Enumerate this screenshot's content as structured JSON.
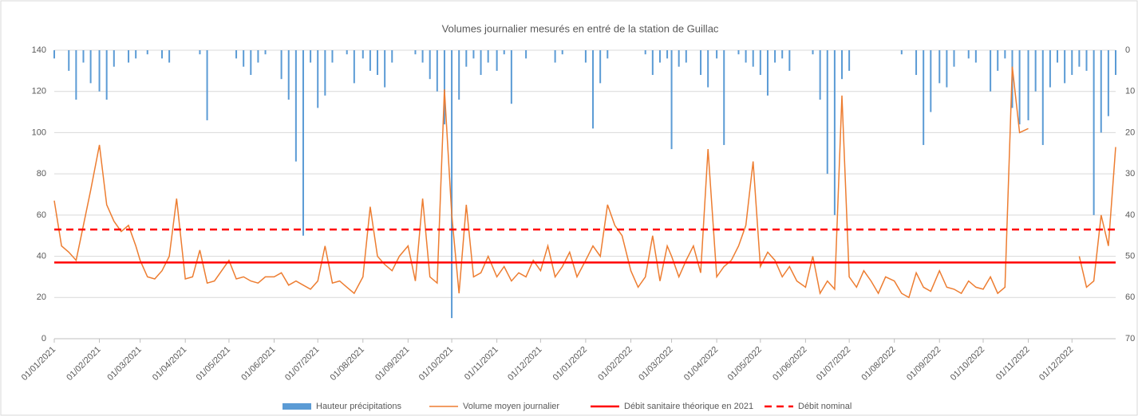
{
  "chart_data": {
    "type": "line",
    "title": "Volumes journalier mesurés en entré de la station de Guillac",
    "x": [
      "01/01/2021",
      "06/01/2021",
      "11/01/2021",
      "16/01/2021",
      "21/01/2021",
      "26/01/2021",
      "01/02/2021",
      "06/02/2021",
      "11/02/2021",
      "16/02/2021",
      "21/02/2021",
      "26/02/2021",
      "01/03/2021",
      "06/03/2021",
      "11/03/2021",
      "16/03/2021",
      "21/03/2021",
      "26/03/2021",
      "01/04/2021",
      "06/04/2021",
      "11/04/2021",
      "16/04/2021",
      "21/04/2021",
      "26/04/2021",
      "01/05/2021",
      "06/05/2021",
      "11/05/2021",
      "16/05/2021",
      "21/05/2021",
      "26/05/2021",
      "01/06/2021",
      "06/06/2021",
      "11/06/2021",
      "16/06/2021",
      "21/06/2021",
      "26/06/2021",
      "01/07/2021",
      "06/07/2021",
      "11/07/2021",
      "16/07/2021",
      "21/07/2021",
      "26/07/2021",
      "01/08/2021",
      "06/08/2021",
      "11/08/2021",
      "16/08/2021",
      "21/08/2021",
      "26/08/2021",
      "01/09/2021",
      "06/09/2021",
      "11/09/2021",
      "16/09/2021",
      "21/09/2021",
      "26/09/2021",
      "01/10/2021",
      "06/10/2021",
      "11/10/2021",
      "16/10/2021",
      "21/10/2021",
      "26/10/2021",
      "01/11/2021",
      "06/11/2021",
      "11/11/2021",
      "16/11/2021",
      "21/11/2021",
      "26/11/2021",
      "01/12/2021",
      "06/12/2021",
      "11/12/2021",
      "16/12/2021",
      "21/12/2021",
      "26/12/2021",
      "01/01/2022",
      "06/01/2022",
      "11/01/2022",
      "16/01/2022",
      "21/01/2022",
      "26/01/2022",
      "01/02/2022",
      "06/02/2022",
      "11/02/2022",
      "16/02/2022",
      "21/02/2022",
      "26/02/2022",
      "01/03/2022",
      "06/03/2022",
      "11/03/2022",
      "16/03/2022",
      "21/03/2022",
      "26/03/2022",
      "01/04/2022",
      "06/04/2022",
      "11/04/2022",
      "16/04/2022",
      "21/04/2022",
      "26/04/2022",
      "01/05/2022",
      "06/05/2022",
      "11/05/2022",
      "16/05/2022",
      "21/05/2022",
      "26/05/2022",
      "01/06/2022",
      "06/06/2022",
      "11/06/2022",
      "16/06/2022",
      "21/06/2022",
      "26/06/2022",
      "01/07/2022",
      "06/07/2022",
      "11/07/2022",
      "16/07/2022",
      "21/07/2022",
      "26/07/2022",
      "01/08/2022",
      "06/08/2022",
      "11/08/2022",
      "16/08/2022",
      "21/08/2022",
      "26/08/2022",
      "01/09/2022",
      "06/09/2022",
      "11/09/2022",
      "16/09/2022",
      "21/09/2022",
      "26/09/2022",
      "01/10/2022",
      "06/10/2022",
      "11/10/2022",
      "16/10/2022",
      "21/10/2022",
      "26/10/2022",
      "01/11/2022",
      "06/11/2022",
      "11/11/2022",
      "16/11/2022",
      "21/11/2022",
      "26/11/2022",
      "01/12/2022",
      "06/12/2022",
      "11/12/2022",
      "16/12/2022",
      "21/12/2022",
      "26/12/2022",
      "31/12/2022"
    ],
    "series": [
      {
        "name": "Hauteur précipitations",
        "type": "bar",
        "axis": "y2",
        "color": "#5b9bd5",
        "values": [
          2,
          0,
          5,
          12,
          3,
          8,
          10,
          12,
          4,
          0,
          3,
          2,
          0,
          1,
          0,
          2,
          3,
          0,
          0,
          0,
          1,
          17,
          0,
          0,
          0,
          2,
          4,
          6,
          3,
          1,
          0,
          7,
          12,
          27,
          45,
          3,
          14,
          11,
          3,
          0,
          1,
          8,
          2,
          5,
          6,
          9,
          3,
          0,
          0,
          1,
          3,
          7,
          10,
          18,
          65,
          12,
          4,
          2,
          6,
          3,
          5,
          1,
          13,
          0,
          2,
          0,
          0,
          0,
          3,
          1,
          0,
          0,
          3,
          19,
          8,
          2,
          0,
          0,
          0,
          0,
          1,
          6,
          3,
          2,
          24,
          4,
          3,
          0,
          6,
          9,
          2,
          23,
          0,
          1,
          3,
          4,
          6,
          11,
          3,
          2,
          5,
          0,
          0,
          1,
          12,
          30,
          40,
          7,
          5,
          0,
          0,
          0,
          0,
          0,
          0,
          1,
          0,
          6,
          23,
          15,
          8,
          9,
          4,
          0,
          2,
          3,
          0,
          10,
          5,
          2,
          14,
          18,
          17,
          10,
          23,
          9,
          3,
          8,
          6,
          4,
          5,
          40,
          20,
          16,
          6
        ]
      },
      {
        "name": "Volume moyen journalier",
        "type": "line",
        "axis": "y",
        "color": "#ed7d31",
        "values": [
          67,
          45,
          42,
          38,
          55,
          72,
          94,
          65,
          57,
          52,
          55,
          45,
          38,
          30,
          29,
          33,
          40,
          68,
          29,
          30,
          43,
          27,
          28,
          33,
          38,
          29,
          30,
          28,
          27,
          30,
          30,
          32,
          26,
          28,
          26,
          24,
          28,
          45,
          27,
          28,
          25,
          22,
          30,
          64,
          40,
          36,
          33,
          40,
          45,
          28,
          68,
          30,
          27,
          121,
          60,
          22,
          65,
          30,
          32,
          40,
          30,
          35,
          28,
          32,
          30,
          38,
          33,
          45,
          30,
          35,
          42,
          30,
          38,
          45,
          40,
          65,
          55,
          50,
          33,
          25,
          30,
          50,
          28,
          45,
          40,
          30,
          38,
          45,
          32,
          92,
          30,
          35,
          38,
          45,
          55,
          86,
          35,
          42,
          38,
          30,
          35,
          28,
          25,
          40,
          22,
          28,
          24,
          118,
          30,
          25,
          33,
          28,
          22,
          30,
          28,
          22,
          20,
          32,
          25,
          23,
          33,
          25,
          24,
          22,
          28,
          25,
          24,
          30,
          22,
          25,
          132,
          100,
          102,
          null,
          null,
          null,
          null,
          null,
          null,
          40,
          25,
          28,
          60,
          45,
          93
        ]
      }
    ],
    "hlines": [
      {
        "name": "Débit sanitaire théorique en 2021",
        "value": 37,
        "color": "#ff0000",
        "dashed": false
      },
      {
        "name": "Débit nominal",
        "value": 53,
        "color": "#ff0000",
        "dashed": true
      }
    ],
    "xlim": [
      "01/01/2021",
      "31/12/2022"
    ],
    "xticks": [
      "01/01/2021",
      "01/02/2021",
      "01/03/2021",
      "01/04/2021",
      "01/05/2021",
      "01/06/2021",
      "01/07/2021",
      "01/08/2021",
      "01/09/2021",
      "01/10/2021",
      "01/11/2021",
      "01/12/2021",
      "01/01/2022",
      "01/02/2022",
      "01/03/2022",
      "01/04/2022",
      "01/05/2022",
      "01/06/2022",
      "01/07/2022",
      "01/08/2022",
      "01/09/2022",
      "01/10/2022",
      "01/11/2022",
      "01/12/2022"
    ],
    "ylim": [
      0,
      140
    ],
    "yticks": [
      0,
      20,
      40,
      60,
      80,
      100,
      120,
      140
    ],
    "y2lim": [
      0,
      70
    ],
    "y2ticks": [
      0,
      10,
      20,
      30,
      40,
      50,
      60,
      70
    ],
    "y2_inverted": true,
    "grid": true,
    "legend": "bottom"
  }
}
